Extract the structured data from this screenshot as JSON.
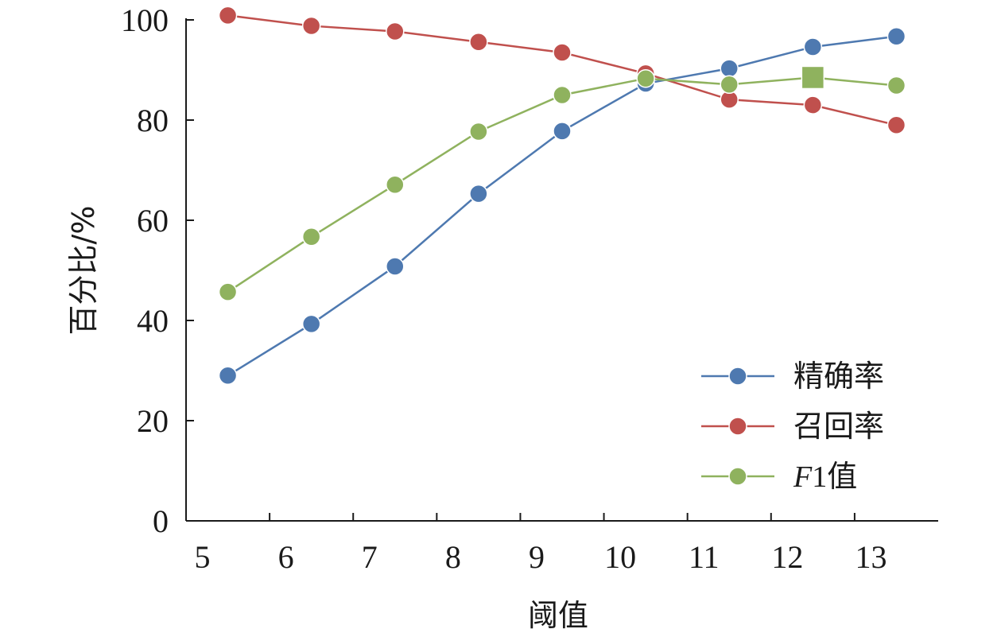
{
  "chart_data": {
    "type": "line",
    "xlabel": "阈值",
    "ylabel": "百分比/%",
    "x": [
      5.5,
      6.5,
      7.5,
      8.5,
      9.5,
      10.5,
      11.5,
      12.5,
      13.5
    ],
    "x_tick_labels": [
      "5",
      "6",
      "7",
      "8",
      "9",
      "10",
      "11",
      "12",
      "13"
    ],
    "y_tick_labels": [
      "0",
      "20",
      "40",
      "60",
      "80",
      "100"
    ],
    "xlim": [
      5,
      14
    ],
    "ylim": [
      0,
      100
    ],
    "grid": false,
    "legend_position": "bottom-right",
    "series": [
      {
        "name": "精确率",
        "legend_label": {
          "main": "精确率"
        },
        "color": "#4e79b0",
        "values": [
          29,
          39.3,
          50.8,
          65.3,
          77.8,
          87.3,
          90.3,
          94.6,
          96.7
        ]
      },
      {
        "name": "召回率",
        "legend_label": {
          "main": "召回率"
        },
        "color": "#c0504d",
        "values": [
          100.9,
          98.8,
          97.7,
          95.6,
          93.5,
          89.3,
          84.1,
          83,
          79
        ]
      },
      {
        "name": "F1值",
        "legend_label": {
          "italic": "F",
          "num": "1",
          "main": "值"
        },
        "color": "#8fb25e",
        "values": [
          45.7,
          56.7,
          67.1,
          77.7,
          85,
          88.3,
          87.1,
          88.5,
          86.9
        ],
        "highlight_index": 7,
        "highlight_marker": "square"
      }
    ]
  }
}
